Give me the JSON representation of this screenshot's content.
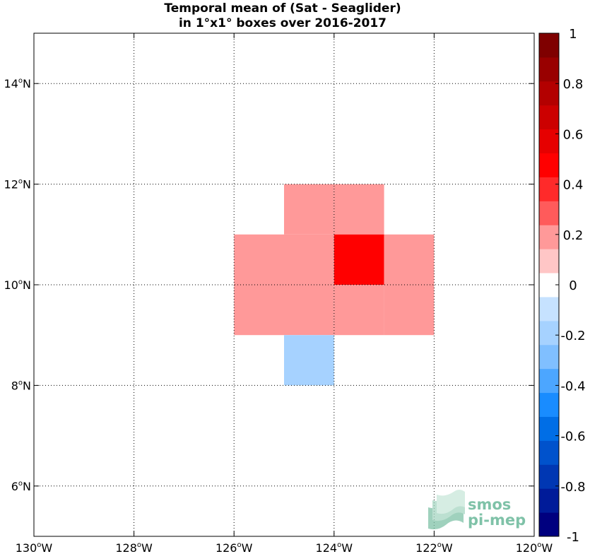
{
  "chart_data": {
    "type": "heatmap",
    "title_line1": "Temporal mean of (Sat - Seaglider)",
    "title_line2": "in 1°x1° boxes over 2016-2017",
    "xlim": [
      -130,
      -120
    ],
    "ylim": [
      5,
      15
    ],
    "xticks": [
      {
        "value": -130,
        "num": "130",
        "hem": "W"
      },
      {
        "value": -128,
        "num": "128",
        "hem": "W"
      },
      {
        "value": -126,
        "num": "126",
        "hem": "W"
      },
      {
        "value": -124,
        "num": "124",
        "hem": "W"
      },
      {
        "value": -122,
        "num": "122",
        "hem": "W"
      },
      {
        "value": -120,
        "num": "120",
        "hem": "W"
      }
    ],
    "yticks": [
      {
        "value": 6,
        "num": "6",
        "hem": "N"
      },
      {
        "value": 8,
        "num": "8",
        "hem": "N"
      },
      {
        "value": 10,
        "num": "10",
        "hem": "N"
      },
      {
        "value": 12,
        "num": "12",
        "hem": "N"
      },
      {
        "value": 14,
        "num": "14",
        "hem": "N"
      }
    ],
    "grid": true,
    "cells": [
      {
        "lon": -125,
        "lat": 11,
        "value": 0.15
      },
      {
        "lon": -124,
        "lat": 11,
        "value": 0.15
      },
      {
        "lon": -126,
        "lat": 10,
        "value": 0.15
      },
      {
        "lon": -125,
        "lat": 10,
        "value": 0.15
      },
      {
        "lon": -124,
        "lat": 10,
        "value": 0.45
      },
      {
        "lon": -123,
        "lat": 10,
        "value": 0.15
      },
      {
        "lon": -126,
        "lat": 9,
        "value": 0.15
      },
      {
        "lon": -125,
        "lat": 9,
        "value": 0.15
      },
      {
        "lon": -124,
        "lat": 9,
        "value": 0.15
      },
      {
        "lon": -123,
        "lat": 9,
        "value": 0.15
      },
      {
        "lon": -125,
        "lat": 8,
        "value": -0.15
      }
    ],
    "colorbar": {
      "range": [
        -1,
        1
      ],
      "colors": [
        "#00007f",
        "#001b99",
        "#0037b3",
        "#0052cc",
        "#006ee6",
        "#198cff",
        "#4ca6ff",
        "#80bfff",
        "#a6d2ff",
        "#c6e2ff",
        "#ffffff",
        "#ffc6c6",
        "#ff9999",
        "#ff5b5b",
        "#ff2a2a",
        "#ff0000",
        "#e60000",
        "#cc0000",
        "#b30000",
        "#990000",
        "#7f0000"
      ],
      "ticks": [
        {
          "value": 1,
          "label": "1"
        },
        {
          "value": 0.8,
          "label": "0.8"
        },
        {
          "value": 0.6,
          "label": "0.6"
        },
        {
          "value": 0.4,
          "label": "0.4"
        },
        {
          "value": 0.2,
          "label": "0.2"
        },
        {
          "value": 0,
          "label": "0"
        },
        {
          "value": -0.2,
          "label": "-0.2"
        },
        {
          "value": -0.4,
          "label": "-0.4"
        },
        {
          "value": -0.6,
          "label": "-0.6"
        },
        {
          "value": -0.8,
          "label": "-0.8"
        },
        {
          "value": -1,
          "label": "-1"
        }
      ]
    }
  },
  "logo": {
    "line1": "smos",
    "line2": "pi-mep",
    "color": "#7fc2a8"
  }
}
